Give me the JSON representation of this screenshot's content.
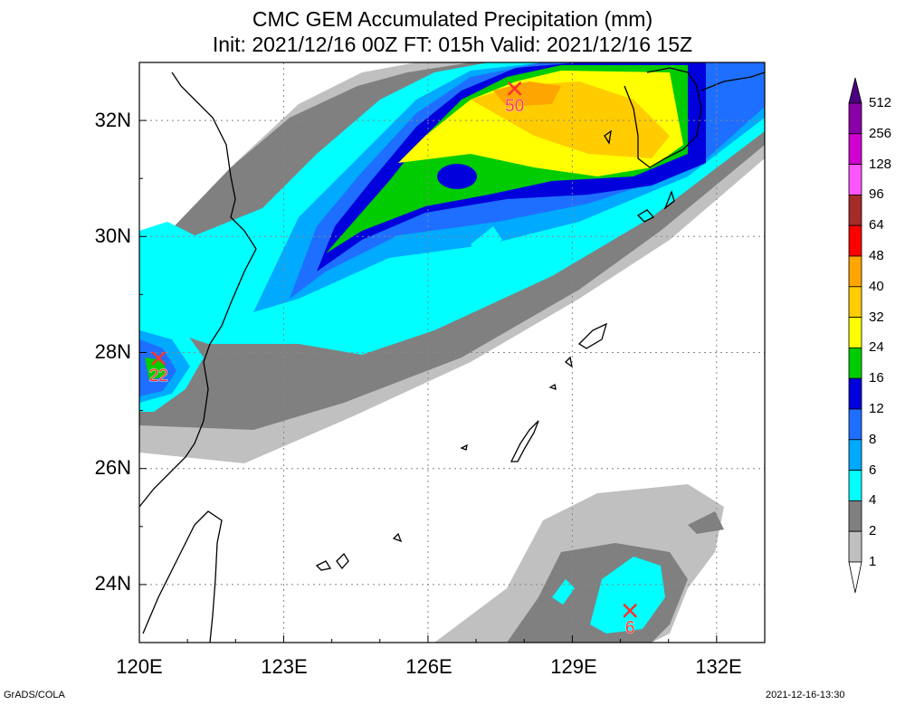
{
  "title_line1": "CMC GEM Accumulated Precipitation (mm)",
  "title_line2": "Init: 2021/12/16 00Z  FT: 015h  Valid: 2021/12/16 15Z",
  "lat_labels": [
    "32N",
    "30N",
    "28N",
    "26N",
    "24N"
  ],
  "lon_labels": [
    "120E",
    "123E",
    "126E",
    "129E",
    "132E"
  ],
  "markers": [
    {
      "value": "50",
      "lon": 127.8,
      "lat": 32.55
    },
    {
      "value": "22",
      "lon": 120.4,
      "lat": 27.9
    },
    {
      "value": "6",
      "lon": 130.2,
      "lat": 23.55
    }
  ],
  "colorbar": {
    "levels": [
      "512",
      "256",
      "128",
      "96",
      "64",
      "48",
      "40",
      "32",
      "24",
      "16",
      "12",
      "8",
      "6",
      "4",
      "2",
      "1"
    ],
    "colors": [
      "#4b0082",
      "#8a00a8",
      "#d100d1",
      "#ff55ff",
      "#a52a2a",
      "#ff0000",
      "#ffa500",
      "#ffcc00",
      "#ffff00",
      "#00cc00",
      "#0000dd",
      "#1e6fff",
      "#00aaff",
      "#00ffff",
      "#808080",
      "#c0c0c0"
    ]
  },
  "footer_left": "GrADS/COLA",
  "footer_right": "2021-12-16-13:30"
}
